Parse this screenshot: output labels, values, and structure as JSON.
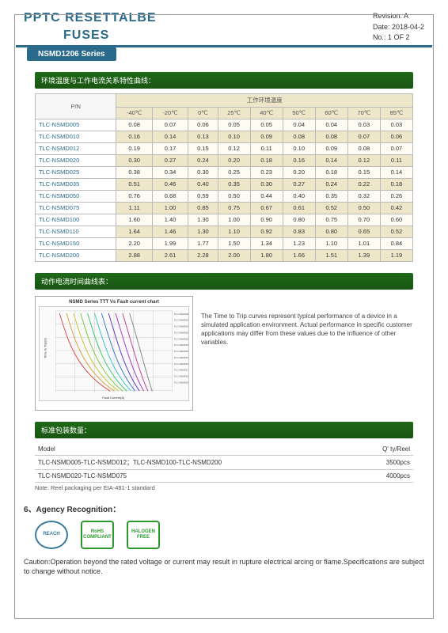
{
  "header": {
    "title1": "PPTC RESETTALBE",
    "title2": "FUSES",
    "revision": "Revision: A",
    "date": "Date: 2018-04-2",
    "pageno": "No.: 1 OF 2",
    "series": "NSMD1206 Series"
  },
  "section1": {
    "title": "环境温度与工作电流关系特性曲线：",
    "pn_label": "P/N",
    "temp_group_label": "工作环境温度",
    "columns": [
      "-40℃",
      "-20℃",
      "0℃",
      "25℃",
      "40℃",
      "50℃",
      "60℃",
      "70℃",
      "85℃"
    ],
    "rows": [
      {
        "pn": "TLC-NSMD005",
        "v": [
          "0.08",
          "0.07",
          "0.06",
          "0.05",
          "0.05",
          "0.04",
          "0.04",
          "0.03",
          "0.03"
        ],
        "alt": false
      },
      {
        "pn": "TLC-NSMD010",
        "v": [
          "0.16",
          "0.14",
          "0.13",
          "0.10",
          "0.09",
          "0.08",
          "0.08",
          "0.07",
          "0.06"
        ],
        "alt": true
      },
      {
        "pn": "TLC-NSMD012",
        "v": [
          "0.19",
          "0.17",
          "0.15",
          "0.12",
          "0.11",
          "0.10",
          "0.09",
          "0.08",
          "0.07"
        ],
        "alt": false
      },
      {
        "pn": "TLC-NSMD020",
        "v": [
          "0.30",
          "0.27",
          "0.24",
          "0.20",
          "0.18",
          "0.16",
          "0.14",
          "0.12",
          "0.11"
        ],
        "alt": true
      },
      {
        "pn": "TLC-NSMD025",
        "v": [
          "0.38",
          "0.34",
          "0.30",
          "0.25",
          "0.23",
          "0.20",
          "0.18",
          "0.15",
          "0.14"
        ],
        "alt": false
      },
      {
        "pn": "TLC-NSMD035",
        "v": [
          "0.51",
          "0.46",
          "0.40",
          "0.35",
          "0.30",
          "0.27",
          "0.24",
          "0.22",
          "0.18"
        ],
        "alt": true
      },
      {
        "pn": "TLC-NSMD050",
        "v": [
          "0.76",
          "0.68",
          "0.59",
          "0.50",
          "0.44",
          "0.40",
          "0.35",
          "0.32",
          "0.26"
        ],
        "alt": false
      },
      {
        "pn": "TLC-NSMD075",
        "v": [
          "1.11",
          "1.00",
          "0.85",
          "0.75",
          "0.67",
          "0.61",
          "0.52",
          "0.50",
          "0.42"
        ],
        "alt": true
      },
      {
        "pn": "TLC-NSMD100",
        "v": [
          "1.60",
          "1.40",
          "1.30",
          "1.00",
          "0.90",
          "0.80",
          "0.75",
          "0.70",
          "0.60"
        ],
        "alt": false
      },
      {
        "pn": "TLC-NSMD110",
        "v": [
          "1.64",
          "1.46",
          "1.30",
          "1.10",
          "0.92",
          "0.83",
          "0.80",
          "0.65",
          "0.52"
        ],
        "alt": true
      },
      {
        "pn": "TLC-NSMD150",
        "v": [
          "2.20",
          "1.99",
          "1.77",
          "1.50",
          "1.34",
          "1.23",
          "1.10",
          "1.01",
          "0.84"
        ],
        "alt": false
      },
      {
        "pn": "TLC-NSMD200",
        "v": [
          "2.88",
          "2.61",
          "2.28",
          "2.00",
          "1.80",
          "1.66",
          "1.51",
          "1.39",
          "1.19"
        ],
        "alt": true
      }
    ]
  },
  "section2": {
    "title": "动作电流时间曲线表：",
    "chart_title": "NSMD Series TTT Vs Fault current chart",
    "chart": {
      "type": "line-loglog",
      "xlabel": "Fault Current(A)",
      "ylabel": "Time to Trip(S)",
      "xlim": [
        0.01,
        100
      ],
      "ylim": [
        0.001,
        10000
      ],
      "background": "#eeeeee",
      "grid_color": "#bbbbbb",
      "series_colors": [
        "#d94a4a",
        "#dca33a",
        "#c7c73a",
        "#7ac73a",
        "#3ac76a",
        "#3ac7c7",
        "#3a7ac7",
        "#5a3ac7",
        "#a73ac7",
        "#c73a9a",
        "#888888"
      ],
      "legend_labels": [
        "TLC-NSMD005",
        "TLC-NSMD010",
        "TLC-NSMD012",
        "TLC-NSMD020",
        "TLC-NSMD025",
        "TLC-NSMD035",
        "TLC-NSMD050",
        "TLC-NSMD075",
        "TLC-NSMD100",
        "TLC-NSMD110",
        "TLC-NSMD150",
        "TLC-NSMD200"
      ]
    },
    "note": "The Time to Trip curves represent typical performance of a device in a simulated application environment. Actual performance in specific customer applications may differ from these values due to the influence of other variables."
  },
  "section3": {
    "title": "标准包装数量：",
    "hdr_model": "Model",
    "hdr_qty": "Q' ty/Reel",
    "rows": [
      {
        "model": "TLC-NSMD005-TLC-NSMD012；TLC-NSMD100-TLC-NSMD200",
        "qty": "3500pcs"
      },
      {
        "model": "TLC-NSMD020-TLC-NSMD075",
        "qty": "4000pcs"
      }
    ],
    "note": "Note: Reel packaging per EIA-481-1 standard"
  },
  "agency": {
    "heading": "6、Agency Recognition：",
    "badges": {
      "reach": "REACH",
      "rohs": "RoHS\nCOMPLIANT",
      "hfree": "HALOGEN\nFREE"
    }
  },
  "caution": "Caution:Operation beyond the rated voltage or current may result in rupture electrical arcing or flame.Specifications are subject to change without notice."
}
